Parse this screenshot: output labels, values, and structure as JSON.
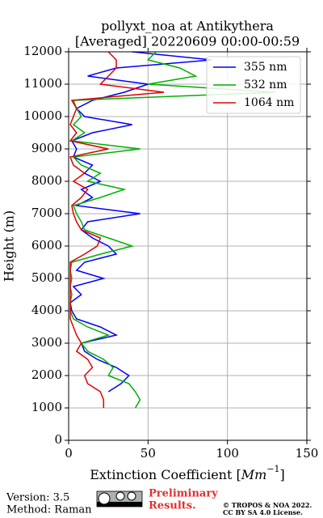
{
  "chart_data": {
    "type": "line",
    "title": "pollyxt_noa at Antikythera",
    "subtitle": "[Averaged] 20220609 00:00-00:59",
    "ylabel": "Height (m)",
    "xlabel_parts": [
      "Extinction Coefficient [",
      "Mm",
      "−1",
      "]"
    ],
    "xlim": [
      0,
      150
    ],
    "xticks": [
      0,
      50,
      100,
      150
    ],
    "ylim": [
      0,
      12000
    ],
    "yticks": [
      0,
      1000,
      2000,
      3000,
      4000,
      5000,
      6000,
      7000,
      8000,
      9000,
      10000,
      11000,
      12000
    ],
    "grid": true,
    "legend": "upper right",
    "y": [
      750,
      1000,
      1250,
      1500,
      1750,
      2000,
      2250,
      2500,
      2750,
      3000,
      3250,
      3500,
      3750,
      4000,
      4250,
      4500,
      4750,
      5000,
      5250,
      5500,
      5750,
      6000,
      6250,
      6500,
      6750,
      7000,
      7250,
      7500,
      7750,
      8000,
      8250,
      8500,
      8750,
      9000,
      9250,
      9500,
      9750,
      10000,
      10250,
      10500,
      10750,
      11000,
      11250,
      11500,
      11750,
      12000
    ],
    "series": [
      {
        "name": "355 nm",
        "color": "#0000ff",
        "values": [
          null,
          null,
          null,
          25,
          33,
          38,
          30,
          18,
          10,
          8,
          30,
          20,
          5,
          2,
          1,
          8,
          3,
          22,
          5,
          10,
          30,
          25,
          15,
          8,
          12,
          45,
          5,
          15,
          8,
          20,
          10,
          15,
          3,
          5,
          2,
          15,
          40,
          10,
          5,
          15,
          35,
          50,
          12,
          30,
          90,
          40
        ]
      },
      {
        "name": "532 nm",
        "color": "#00b000",
        "values": [
          null,
          42,
          45,
          42,
          38,
          25,
          28,
          22,
          12,
          8,
          25,
          12,
          3,
          1,
          1,
          2,
          1,
          2,
          1,
          2,
          20,
          40,
          25,
          10,
          8,
          5,
          3,
          20,
          35,
          12,
          20,
          8,
          3,
          45,
          2,
          10,
          3,
          8,
          5,
          3,
          130,
          50,
          80,
          70,
          50,
          55
        ]
      },
      {
        "name": "1064 nm",
        "color": "#e00000",
        "values": [
          null,
          22,
          22,
          20,
          12,
          10,
          15,
          12,
          5,
          8,
          5,
          3,
          1,
          1,
          1,
          1,
          1,
          1,
          1,
          1,
          10,
          18,
          20,
          8,
          5,
          3,
          2,
          8,
          12,
          3,
          10,
          3,
          1,
          25,
          1,
          5,
          1,
          3,
          5,
          2,
          60,
          20,
          25,
          30,
          30,
          25
        ]
      }
    ]
  },
  "footer": {
    "version": "Version: 3.5",
    "method": "Method: Raman",
    "notice": [
      "Preliminary",
      "Results."
    ],
    "copyright": [
      "© TROPOS & NOA 2022.",
      "CC BY SA 4.0 License."
    ]
  }
}
